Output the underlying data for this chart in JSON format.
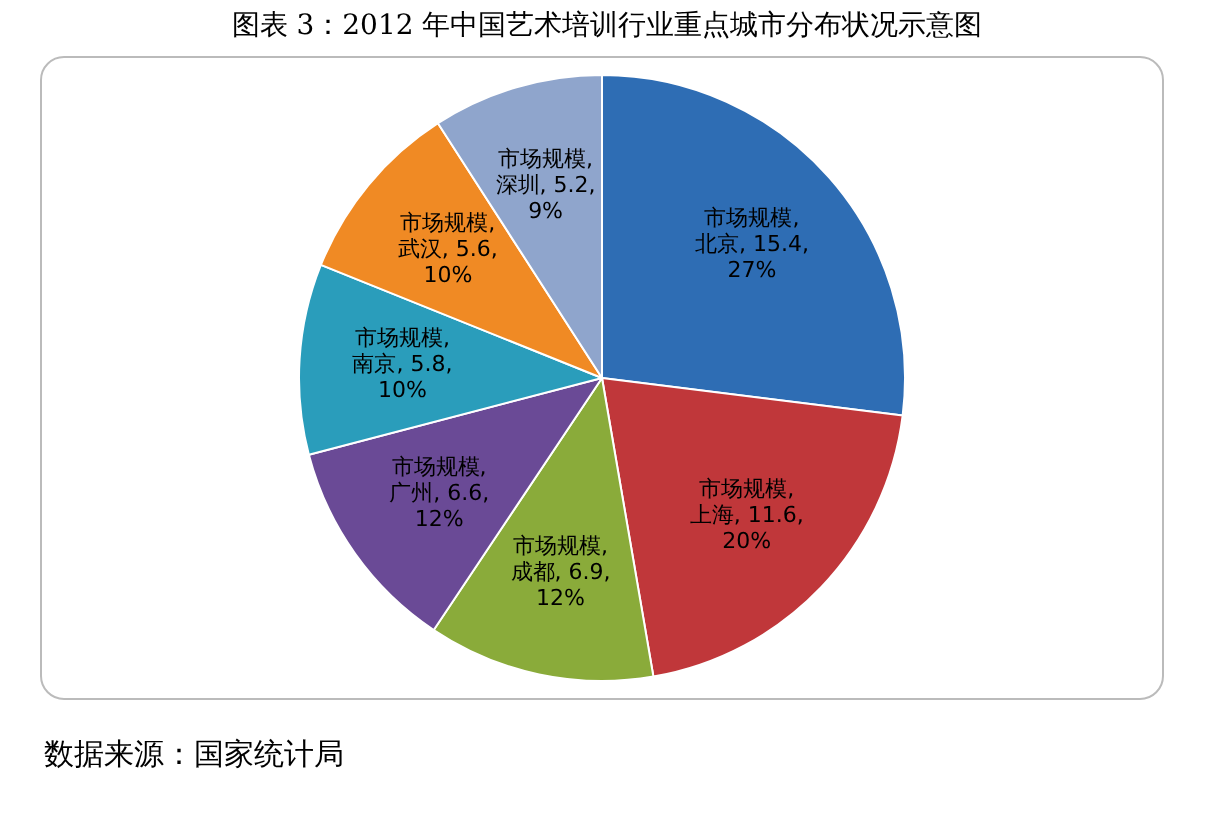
{
  "chart_data": {
    "type": "pie",
    "title": "图表 3：2012 年中国艺术培训行业重点城市分布状况示意图",
    "categories": [
      "市场规模, 北京, 15.4, 27%",
      "市场规模, 上海, 11.6, 20%",
      "市场规模, 成都, 6.9, 12%",
      "市场规模, 广州, 6.6, 12%",
      "市场规模, 南京, 5.8, 10%",
      "市场规模, 武汉, 5.6, 10%",
      "市场规模, 深圳, 5.2, 9%"
    ],
    "series": [
      {
        "values": [
          15.4,
          11.6,
          6.9,
          6.6,
          5.8,
          5.6,
          5.2
        ],
        "colors": [
          "#2e6db4",
          "#c0373a",
          "#8aab3a",
          "#6a4a96",
          "#2a9dbb",
          "#f08a24",
          "#8fa5cc"
        ]
      }
    ],
    "legend": false,
    "annotations": [
      "数据来源：国家统计局"
    ]
  }
}
